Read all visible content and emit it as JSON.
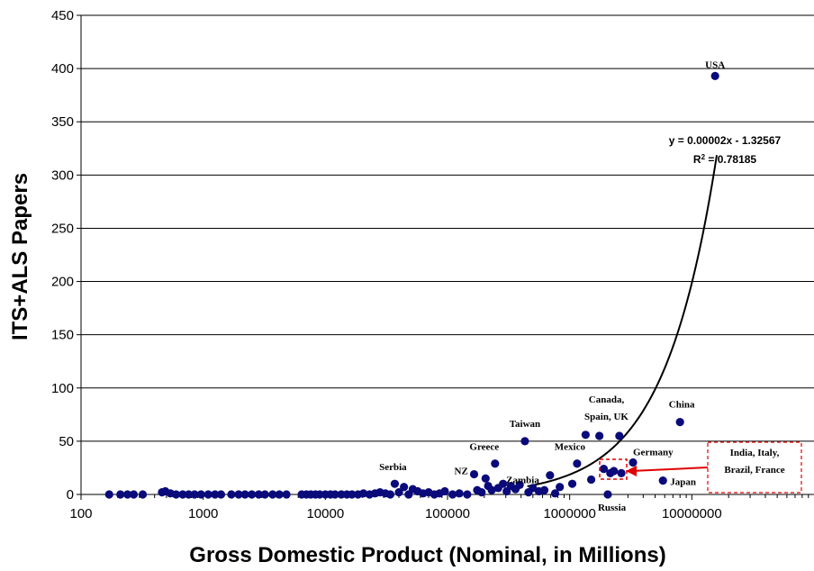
{
  "chart_data": {
    "type": "scatter",
    "title": "",
    "xlabel": "Gross Domestic Product (Nominal, in Millions)",
    "ylabel": "ITS+ALS  Papers",
    "x_scale": "log",
    "xlim": [
      100,
      100000000
    ],
    "ylim": [
      0,
      450
    ],
    "x_ticks": [
      "100",
      "1000",
      "10000",
      "100000",
      "1000000",
      "10000000"
    ],
    "y_ticks": [
      "0",
      "50",
      "100",
      "150",
      "200",
      "250",
      "300",
      "350",
      "400",
      "450"
    ],
    "grid": "horizontal",
    "marker_color": "#0a0a7a",
    "trend_color": "#000000",
    "callout_color": "#e00000",
    "trendline": {
      "equation": "y = 0.00002x - 1.32567",
      "r_squared_label": "R",
      "r_squared_value": " = 0.78185",
      "x_range": [
        450000,
        16000000
      ]
    },
    "points": [
      {
        "x": 170,
        "y": 0
      },
      {
        "x": 210,
        "y": 0
      },
      {
        "x": 240,
        "y": 0
      },
      {
        "x": 270,
        "y": 0
      },
      {
        "x": 320,
        "y": 0
      },
      {
        "x": 460,
        "y": 2
      },
      {
        "x": 490,
        "y": 3
      },
      {
        "x": 540,
        "y": 1
      },
      {
        "x": 600,
        "y": 0
      },
      {
        "x": 680,
        "y": 0
      },
      {
        "x": 760,
        "y": 0
      },
      {
        "x": 850,
        "y": 0
      },
      {
        "x": 960,
        "y": 0
      },
      {
        "x": 1100,
        "y": 0
      },
      {
        "x": 1250,
        "y": 0
      },
      {
        "x": 1400,
        "y": 0
      },
      {
        "x": 1700,
        "y": 0
      },
      {
        "x": 1950,
        "y": 0
      },
      {
        "x": 2200,
        "y": 0
      },
      {
        "x": 2500,
        "y": 0
      },
      {
        "x": 2850,
        "y": 0
      },
      {
        "x": 3200,
        "y": 0
      },
      {
        "x": 3700,
        "y": 0
      },
      {
        "x": 4200,
        "y": 0
      },
      {
        "x": 4800,
        "y": 0
      },
      {
        "x": 6400,
        "y": 0
      },
      {
        "x": 7000,
        "y": 0
      },
      {
        "x": 7600,
        "y": 0
      },
      {
        "x": 8300,
        "y": 0
      },
      {
        "x": 9000,
        "y": 0
      },
      {
        "x": 10000,
        "y": 0
      },
      {
        "x": 11000,
        "y": 0
      },
      {
        "x": 12000,
        "y": 0
      },
      {
        "x": 13500,
        "y": 0
      },
      {
        "x": 15000,
        "y": 0
      },
      {
        "x": 16500,
        "y": 0
      },
      {
        "x": 18500,
        "y": 0
      },
      {
        "x": 20500,
        "y": 1
      },
      {
        "x": 23000,
        "y": 0
      },
      {
        "x": 25500,
        "y": 1
      },
      {
        "x": 28000,
        "y": 2
      },
      {
        "x": 31000,
        "y": 1
      },
      {
        "x": 34000,
        "y": 0
      },
      {
        "x": 37000,
        "y": 10
      },
      {
        "x": 40000,
        "y": 2
      },
      {
        "x": 44000,
        "y": 7
      },
      {
        "x": 48000,
        "y": 0
      },
      {
        "x": 52000,
        "y": 5
      },
      {
        "x": 57000,
        "y": 3
      },
      {
        "x": 63000,
        "y": 1
      },
      {
        "x": 70000,
        "y": 2
      },
      {
        "x": 78000,
        "y": 0
      },
      {
        "x": 86000,
        "y": 1
      },
      {
        "x": 95000,
        "y": 3
      },
      {
        "x": 110000,
        "y": 0
      },
      {
        "x": 125000,
        "y": 1
      },
      {
        "x": 145000,
        "y": 0
      },
      {
        "x": 165000,
        "y": 19
      },
      {
        "x": 175000,
        "y": 4
      },
      {
        "x": 190000,
        "y": 2
      },
      {
        "x": 205000,
        "y": 15
      },
      {
        "x": 215000,
        "y": 8
      },
      {
        "x": 230000,
        "y": 4
      },
      {
        "x": 245000,
        "y": 29
      },
      {
        "x": 260000,
        "y": 6
      },
      {
        "x": 285000,
        "y": 10
      },
      {
        "x": 305000,
        "y": 3
      },
      {
        "x": 330000,
        "y": 8
      },
      {
        "x": 360000,
        "y": 5
      },
      {
        "x": 390000,
        "y": 9
      },
      {
        "x": 430000,
        "y": 50
      },
      {
        "x": 460000,
        "y": 2
      },
      {
        "x": 500000,
        "y": 6
      },
      {
        "x": 560000,
        "y": 3
      },
      {
        "x": 620000,
        "y": 4
      },
      {
        "x": 690000,
        "y": 18
      },
      {
        "x": 760000,
        "y": 1
      },
      {
        "x": 830000,
        "y": 7
      },
      {
        "x": 1050000,
        "y": 10
      },
      {
        "x": 1150000,
        "y": 29
      },
      {
        "x": 1350000,
        "y": 56
      },
      {
        "x": 1500000,
        "y": 14
      },
      {
        "x": 1750000,
        "y": 55
      },
      {
        "x": 1900000,
        "y": 24
      },
      {
        "x": 2050000,
        "y": 0
      },
      {
        "x": 2150000,
        "y": 20
      },
      {
        "x": 2300000,
        "y": 22
      },
      {
        "x": 2550000,
        "y": 55
      },
      {
        "x": 2650000,
        "y": 20
      },
      {
        "x": 3300000,
        "y": 30
      },
      {
        "x": 5800000,
        "y": 13
      },
      {
        "x": 8000000,
        "y": 68
      },
      {
        "x": 15500000,
        "y": 393
      }
    ],
    "annotations": [
      {
        "text": "USA",
        "x": 15500000,
        "y": 393
      },
      {
        "text": "China",
        "x": 8000000,
        "y": 68
      },
      {
        "text": "Canada,",
        "x": 2000000,
        "y": 56
      },
      {
        "text": "Spain, UK",
        "x": 2000000,
        "y": 56
      },
      {
        "text": "Taiwan",
        "x": 430000,
        "y": 50
      },
      {
        "text": "Greece",
        "x": 245000,
        "y": 29
      },
      {
        "text": "Mexico",
        "x": 1150000,
        "y": 29
      },
      {
        "text": "Germany",
        "x": 3300000,
        "y": 30
      },
      {
        "text": "NZ",
        "x": 165000,
        "y": 19
      },
      {
        "text": "Serbia",
        "x": 37000,
        "y": 10
      },
      {
        "text": "Zambia",
        "x": 470000,
        "y": 2
      },
      {
        "text": "Japan",
        "x": 5800000,
        "y": 13
      },
      {
        "text": "Russia",
        "x": 2050000,
        "y": 0
      }
    ],
    "callout": {
      "lines": [
        "India, Italy,",
        "Brazil, France"
      ]
    }
  }
}
